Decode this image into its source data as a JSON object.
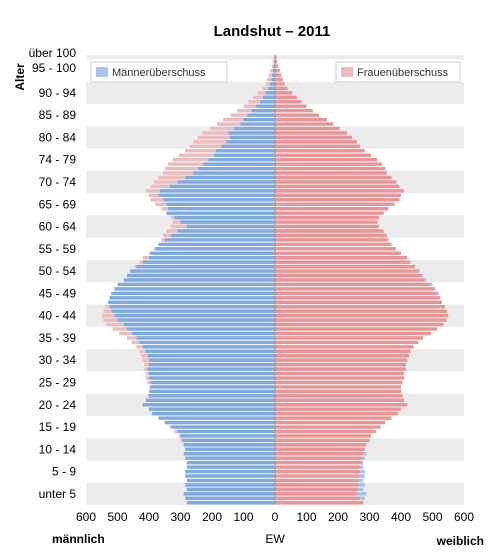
{
  "chart_data": {
    "type": "bar",
    "subtype": "population-pyramid",
    "title": "Landshut – 2011",
    "y_axis_title": "Alter",
    "x_center_label": "EW",
    "left_label": "männlich",
    "right_label": "weiblich",
    "x_ticks": [
      "600",
      "500",
      "400",
      "300",
      "200",
      "100",
      "0",
      "100",
      "200",
      "300",
      "400",
      "500",
      "600"
    ],
    "xlim": [
      -600,
      600
    ],
    "age_labels": [
      "über 100",
      "95 - 100",
      "90 - 94",
      "85 - 89",
      "80 - 84",
      "74 - 79",
      "70 - 74",
      "65 - 69",
      "60 - 64",
      "55 - 59",
      "50 - 54",
      "45 - 49",
      "40 - 44",
      "35 - 39",
      "30 - 34",
      "25 - 29",
      "20 - 24",
      "15 - 19",
      "10 - 14",
      "5 - 9",
      "unter 5"
    ],
    "legend": [
      {
        "name": "Männerüberschuss",
        "color": "#a7c4e6",
        "placement": "top-left"
      },
      {
        "name": "Frauenüberschuss",
        "color": "#ebbcbf",
        "placement": "top-right"
      }
    ],
    "colors": {
      "male": "#7faae0",
      "female": "#e99597",
      "male_excess": "#a7c4e6",
      "female_excess": "#ebbcbf",
      "stripe": "#ececec"
    },
    "ages": [
      100,
      99,
      98,
      97,
      96,
      95,
      94,
      93,
      92,
      91,
      90,
      89,
      88,
      87,
      86,
      85,
      84,
      83,
      82,
      81,
      80,
      79,
      78,
      77,
      76,
      75,
      74,
      73,
      72,
      71,
      70,
      69,
      68,
      67,
      66,
      65,
      64,
      63,
      62,
      61,
      60,
      59,
      58,
      57,
      56,
      55,
      54,
      53,
      52,
      51,
      50,
      49,
      48,
      47,
      46,
      45,
      44,
      43,
      42,
      41,
      40,
      39,
      38,
      37,
      36,
      35,
      34,
      33,
      32,
      31,
      30,
      29,
      28,
      27,
      26,
      25,
      24,
      23,
      22,
      21,
      20,
      19,
      18,
      17,
      16,
      15,
      14,
      13,
      12,
      11,
      10,
      9,
      8,
      7,
      6,
      5,
      4,
      3,
      2,
      1,
      0
    ],
    "male": [
      2,
      3,
      5,
      7,
      10,
      12,
      16,
      22,
      30,
      38,
      48,
      60,
      75,
      88,
      100,
      110,
      130,
      148,
      145,
      155,
      170,
      188,
      195,
      212,
      228,
      245,
      260,
      285,
      310,
      335,
      365,
      370,
      355,
      345,
      340,
      345,
      320,
      300,
      280,
      310,
      330,
      350,
      370,
      380,
      395,
      400,
      420,
      440,
      460,
      470,
      480,
      500,
      510,
      520,
      525,
      530,
      525,
      520,
      510,
      500,
      480,
      470,
      455,
      440,
      430,
      420,
      410,
      405,
      400,
      400,
      405,
      400,
      400,
      395,
      395,
      400,
      400,
      410,
      420,
      400,
      390,
      370,
      350,
      330,
      310,
      300,
      295,
      290,
      285,
      290,
      285,
      280,
      280,
      285,
      285,
      280,
      285,
      280,
      290,
      285,
      280
    ],
    "female": [
      5,
      7,
      10,
      15,
      20,
      25,
      30,
      40,
      55,
      70,
      85,
      100,
      120,
      140,
      165,
      185,
      205,
      230,
      245,
      260,
      270,
      285,
      305,
      325,
      340,
      350,
      355,
      370,
      385,
      395,
      410,
      400,
      395,
      380,
      360,
      345,
      330,
      325,
      330,
      345,
      355,
      360,
      370,
      385,
      400,
      420,
      430,
      445,
      455,
      465,
      475,
      490,
      505,
      515,
      525,
      530,
      540,
      545,
      550,
      545,
      535,
      515,
      495,
      470,
      455,
      440,
      430,
      425,
      420,
      415,
      415,
      410,
      410,
      405,
      400,
      400,
      405,
      410,
      420,
      400,
      390,
      370,
      350,
      335,
      320,
      305,
      300,
      290,
      285,
      280,
      278,
      275,
      272,
      270,
      268,
      265,
      265,
      262,
      260,
      270,
      280
    ]
  }
}
